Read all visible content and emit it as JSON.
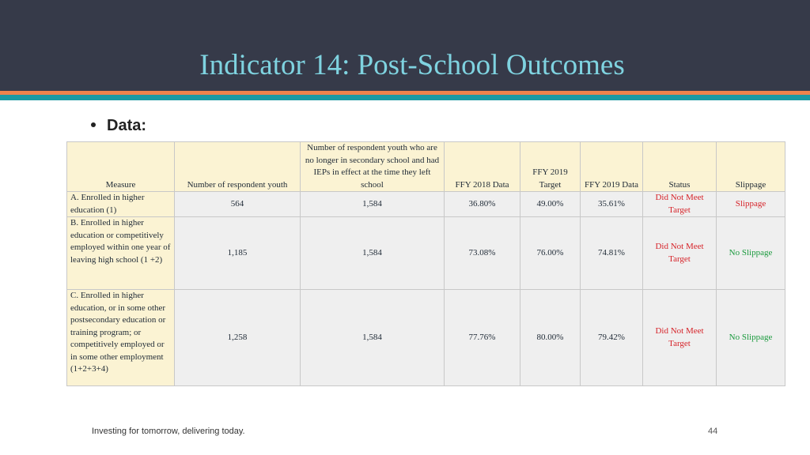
{
  "slide": {
    "title": "Indicator 14: Post-School Outcomes",
    "bullet": "Data:",
    "footer": "Investing for tomorrow, delivering today.",
    "page_number": "44"
  },
  "table": {
    "headers": [
      "Measure",
      "Number of respondent youth",
      "Number of respondent youth who are no longer in secondary school and had IEPs in effect at the time they left school",
      "FFY 2018 Data",
      "FFY 2019 Target",
      "FFY 2019 Data",
      "Status",
      "Slippage"
    ],
    "rows": [
      {
        "measure": "A. Enrolled in higher education (1)",
        "respondents": "564",
        "total": "1,584",
        "ffy2018": "36.80%",
        "target": "49.00%",
        "ffy2019": "35.61%",
        "status": "Did Not Meet Target",
        "slippage": "Slippage"
      },
      {
        "measure": "B. Enrolled in higher education or competitively employed within one year of leaving high school (1 +2)",
        "respondents": "1,185",
        "total": "1,584",
        "ffy2018": "73.08%",
        "target": "76.00%",
        "ffy2019": "74.81%",
        "status": "Did Not Meet Target",
        "slippage": "No Slippage"
      },
      {
        "measure": "C. Enrolled in higher education, or in some other postsecondary education or training program; or competitively employed or in some other employment (1+2+3+4)",
        "respondents": "1,258",
        "total": "1,584",
        "ffy2018": "77.76%",
        "target": "80.00%",
        "ffy2019": "79.42%",
        "status": "Did Not Meet Target",
        "slippage": "No Slippage"
      }
    ]
  },
  "colors": {
    "header_bg": "#363a49",
    "title": "#7fd3e0",
    "stripe_orange": "#f0834c",
    "stripe_teal": "#1c9aa3",
    "table_header_bg": "#fbf3d3",
    "table_cell_bg": "#efefef",
    "status_red": "#d6242a",
    "no_slippage_green": "#1a9a3d"
  }
}
